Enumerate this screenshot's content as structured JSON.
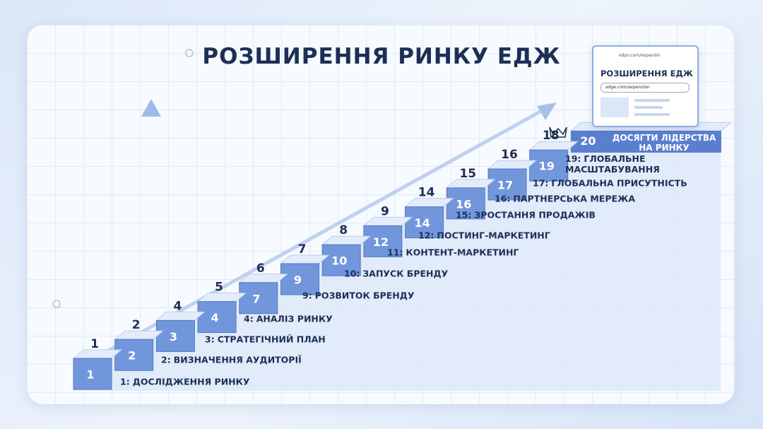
{
  "title": "РОЗШИРЕННЯ РИНКУ ЕДЖ",
  "browser": {
    "address": "edpv.com/expandin",
    "heading": "РОЗШИРЕННЯ ЕДЖ",
    "search": "adge.com/axpenzion"
  },
  "steps": [
    {
      "front": "1",
      "top": "1"
    },
    {
      "front": "2",
      "top": "2"
    },
    {
      "front": "3",
      "top": "4"
    },
    {
      "front": "4",
      "top": "5"
    },
    {
      "front": "7",
      "top": "6"
    },
    {
      "front": "9",
      "top": "7"
    },
    {
      "front": "10",
      "top": "8"
    },
    {
      "front": "12",
      "top": "9"
    },
    {
      "front": "14",
      "top": "14"
    },
    {
      "front": "16",
      "top": "15"
    },
    {
      "front": "17",
      "top": "16"
    },
    {
      "front": "19",
      "top": "18"
    },
    {
      "front": "20"
    }
  ],
  "summit": "ДОСЯГТИ ЛІДЕРСТВА НА РИНКУ",
  "milestones": [
    {
      "number": "1:",
      "text": "ДОСЛІДЖЕННЯ РИНКУ"
    },
    {
      "number": "2:",
      "text": "ВИЗНАЧЕННЯ АУДИТОРІЇ"
    },
    {
      "number": "3:",
      "text": "СТРАТЕГІЧНИЙ ПЛАН"
    },
    {
      "number": "4:",
      "text": "АНАЛІЗ РИНКУ"
    },
    {
      "number": "9:",
      "text": "РОЗВИТОК БРЕНДУ"
    },
    {
      "number": "10:",
      "text": "ЗАПУСК БРЕНДУ"
    },
    {
      "number": "11:",
      "text": "КОНТЕНТ-МАРКЕТИНГ"
    },
    {
      "number": "12:",
      "text": "ПОСТИНГ-МАРКЕТИНГ"
    },
    {
      "number": "15:",
      "text": "ЗРОСТАННЯ ПРОДАЖІВ"
    },
    {
      "number": "16:",
      "text": "ПАРТНЕРСЬКА МЕРЕЖА"
    },
    {
      "number": "17:",
      "text": "ГЛОБАЛЬНА ПРИСУТНІСТЬ"
    },
    {
      "number": "19:",
      "text": "ГЛОБАЛЬНЕ МАСШТАБУВАННЯ"
    }
  ]
}
